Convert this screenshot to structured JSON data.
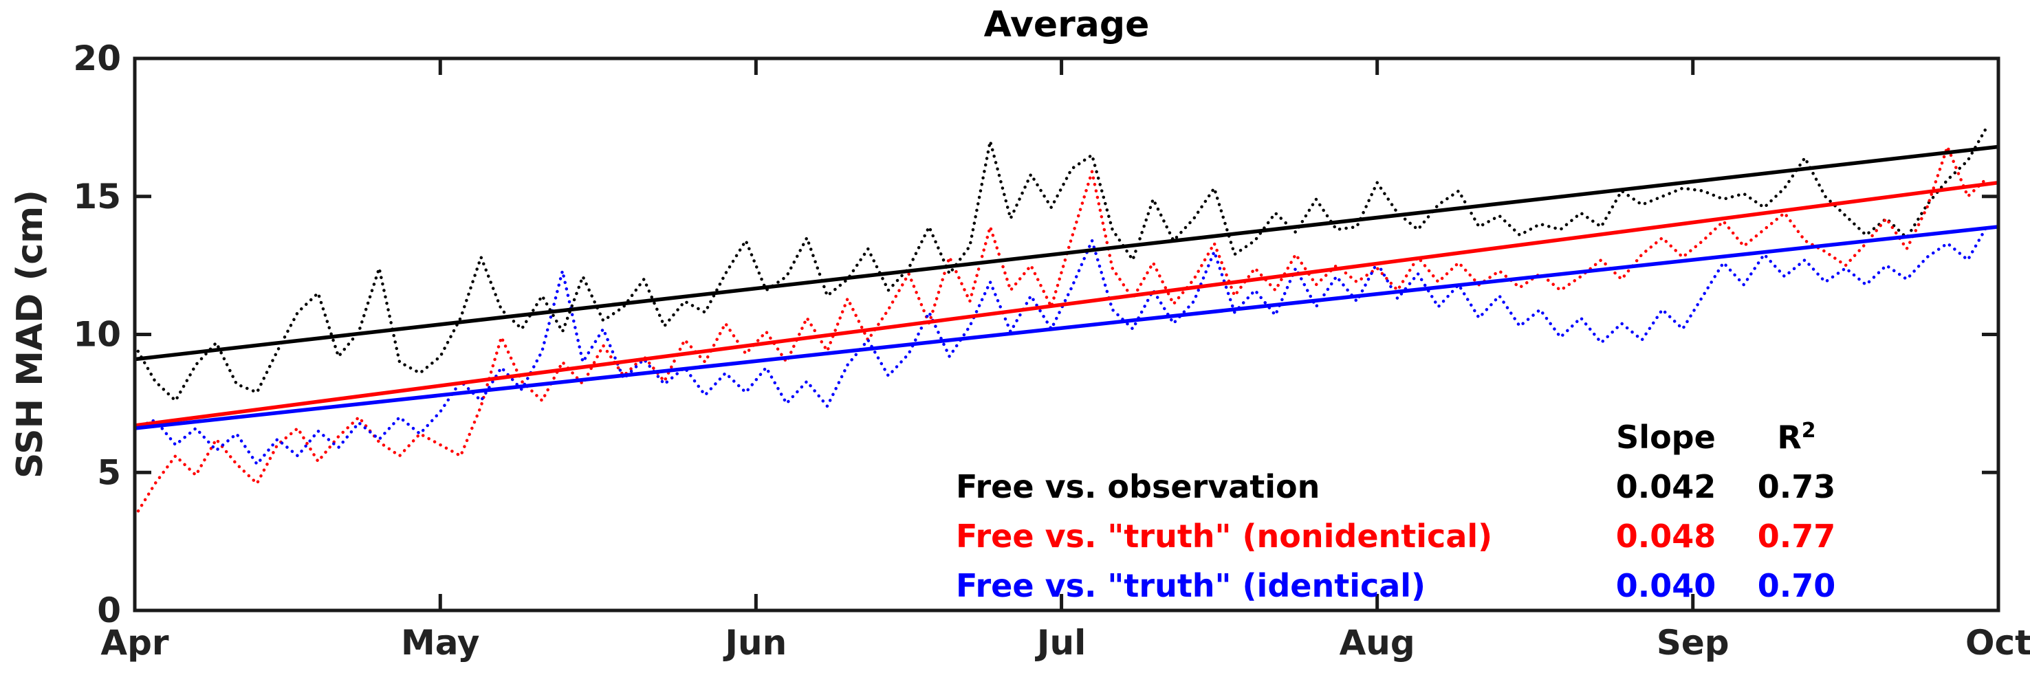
{
  "title": "Average",
  "axes": {
    "ylabel": "SSH MAD (cm)"
  },
  "legend": {
    "headers": {
      "slope": "Slope",
      "r2_base": "R",
      "r2_sup": "2"
    },
    "rows": [
      {
        "label": "Free vs. observation",
        "slope": "0.042",
        "r2": "0.73",
        "color": "#000000"
      },
      {
        "label": "Free vs. \"truth\" (nonidentical)",
        "slope": "0.048",
        "r2": "0.77",
        "color": "#ff0000"
      },
      {
        "label": "Free vs. \"truth\" (identical)",
        "slope": "0.040",
        "r2": "0.70",
        "color": "#0000ff"
      }
    ]
  },
  "chart_data": {
    "type": "line",
    "title": "Average",
    "xlabel": "",
    "ylabel": "SSH MAD (cm)",
    "xlim": [
      0,
      183
    ],
    "ylim": [
      0,
      20
    ],
    "grid": false,
    "legend_position": "inside lower-right as text table",
    "x_unit": "days since Apr 1",
    "x_ticks": [
      0,
      30,
      61,
      91,
      122,
      153,
      183
    ],
    "x_ticklabels": [
      "Apr",
      "May",
      "Jun",
      "Jul",
      "Aug",
      "Sep",
      "Oct"
    ],
    "y_ticks": [
      0,
      5,
      10,
      15,
      20
    ],
    "x_days": [
      0,
      2,
      4,
      6,
      8,
      10,
      12,
      14,
      16,
      18,
      20,
      22,
      24,
      26,
      28,
      30,
      32,
      34,
      36,
      38,
      40,
      42,
      44,
      46,
      48,
      50,
      52,
      54,
      56,
      58,
      60,
      62,
      64,
      66,
      68,
      70,
      72,
      74,
      76,
      78,
      80,
      82,
      84,
      86,
      88,
      90,
      92,
      94,
      96,
      98,
      100,
      102,
      104,
      106,
      108,
      110,
      112,
      114,
      116,
      118,
      120,
      122,
      124,
      126,
      128,
      130,
      132,
      134,
      136,
      138,
      140,
      142,
      144,
      146,
      148,
      150,
      152,
      154,
      156,
      158,
      160,
      162,
      164,
      166,
      168,
      170,
      172,
      174,
      176,
      178,
      180,
      182
    ],
    "series": [
      {
        "id": "free-vs-observation",
        "name": "Free vs. observation",
        "color": "#000000",
        "style": "dotted",
        "values": [
          9.6,
          8.3,
          7.6,
          8.9,
          9.7,
          8.2,
          7.9,
          9.4,
          10.8,
          11.5,
          9.2,
          10.1,
          12.4,
          9.0,
          8.6,
          9.2,
          10.6,
          12.8,
          10.9,
          10.2,
          11.4,
          10.1,
          12.1,
          10.5,
          11.0,
          12.0,
          10.3,
          11.2,
          10.8,
          12.2,
          13.4,
          11.6,
          12.1,
          13.5,
          11.4,
          12.0,
          13.1,
          11.6,
          12.4,
          13.9,
          12.2,
          13.2,
          17.0,
          14.2,
          15.8,
          14.6,
          16.0,
          16.5,
          13.8,
          12.7,
          14.9,
          13.4,
          14.2,
          15.3,
          12.9,
          13.4,
          14.4,
          13.7,
          14.9,
          13.8,
          13.9,
          15.5,
          14.4,
          13.8,
          14.7,
          15.2,
          13.9,
          14.3,
          13.6,
          14.0,
          13.8,
          14.4,
          13.9,
          15.2,
          14.7,
          15.0,
          15.3,
          15.2,
          14.9,
          15.1,
          14.6,
          15.3,
          16.4,
          15.0,
          14.3,
          13.6,
          14.2,
          13.5,
          14.7,
          15.6,
          16.3,
          17.6
        ]
      },
      {
        "id": "free-vs-truth-nonidentical",
        "name": "Free vs. \"truth\" (nonidentical)",
        "color": "#ff0000",
        "style": "dotted",
        "values": [
          3.4,
          4.6,
          5.6,
          4.9,
          6.2,
          5.3,
          4.6,
          6.0,
          6.6,
          5.4,
          6.3,
          7.0,
          6.1,
          5.6,
          6.4,
          6.0,
          5.6,
          7.4,
          9.9,
          8.3,
          7.6,
          9.0,
          8.2,
          9.6,
          8.5,
          9.2,
          8.3,
          9.8,
          9.0,
          10.4,
          9.3,
          10.1,
          9.0,
          10.6,
          9.4,
          11.3,
          9.8,
          10.9,
          12.2,
          10.4,
          12.8,
          11.2,
          13.9,
          11.6,
          12.5,
          11.0,
          13.5,
          15.9,
          12.4,
          11.3,
          12.6,
          11.1,
          12.0,
          13.3,
          11.4,
          12.4,
          11.6,
          12.9,
          11.8,
          12.5,
          11.9,
          12.4,
          11.6,
          12.8,
          11.9,
          12.6,
          11.8,
          12.3,
          11.7,
          12.2,
          11.6,
          12.1,
          12.7,
          12.0,
          12.9,
          13.5,
          12.8,
          13.4,
          14.1,
          13.2,
          13.8,
          14.4,
          13.4,
          13.0,
          12.5,
          13.3,
          14.2,
          13.1,
          14.6,
          16.8,
          15.0,
          15.7
        ]
      },
      {
        "id": "free-vs-truth-identical",
        "name": "Free vs. \"truth\" (identical)",
        "color": "#0000ff",
        "style": "dotted",
        "values": [
          6.6,
          6.9,
          6.0,
          6.6,
          5.8,
          6.4,
          5.3,
          6.2,
          5.6,
          6.5,
          5.9,
          6.8,
          6.2,
          7.0,
          6.4,
          7.2,
          8.3,
          7.6,
          8.8,
          8.0,
          9.4,
          12.3,
          9.0,
          10.2,
          8.4,
          9.1,
          8.2,
          8.8,
          7.8,
          8.6,
          7.9,
          8.8,
          7.5,
          8.3,
          7.4,
          8.9,
          9.8,
          8.5,
          9.3,
          10.8,
          9.2,
          10.3,
          11.9,
          10.1,
          11.4,
          10.2,
          11.7,
          13.4,
          10.9,
          10.2,
          11.6,
          10.4,
          11.2,
          13.0,
          10.8,
          11.6,
          10.7,
          12.4,
          11.0,
          12.1,
          11.2,
          12.6,
          11.3,
          12.2,
          11.0,
          11.8,
          10.6,
          11.4,
          10.3,
          10.9,
          9.9,
          10.6,
          9.7,
          10.4,
          9.8,
          10.9,
          10.2,
          11.4,
          12.6,
          11.8,
          12.9,
          12.1,
          12.7,
          11.9,
          12.4,
          11.8,
          12.5,
          12.0,
          12.8,
          13.3,
          12.7,
          14.0
        ]
      }
    ],
    "trend_lines": [
      {
        "id": "trend-observation",
        "name": "Free vs. observation linear fit",
        "color": "#000000",
        "slope_cm_per_day": 0.042,
        "r2": 0.73,
        "y_start": 9.1,
        "y_end": 16.8
      },
      {
        "id": "trend-nonidentical",
        "name": "Free vs. \"truth\" (nonidentical) linear fit",
        "color": "#ff0000",
        "slope_cm_per_day": 0.048,
        "r2": 0.77,
        "y_start": 6.7,
        "y_end": 15.5
      },
      {
        "id": "trend-identical",
        "name": "Free vs. \"truth\" (identical) linear fit",
        "color": "#0000ff",
        "slope_cm_per_day": 0.04,
        "r2": 0.7,
        "y_start": 6.6,
        "y_end": 13.9
      }
    ]
  }
}
